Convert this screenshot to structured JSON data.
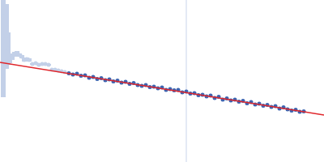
{
  "chart_data": {
    "type": "scatter",
    "tick_labels": false,
    "grid": false,
    "xlim": [
      0,
      400
    ],
    "ylim": [
      0,
      200
    ],
    "xticks": [],
    "yticks": [],
    "vline": 230,
    "series": [
      {
        "type": "scatter",
        "marker": "circle",
        "color": "#c3d0e8",
        "x": [
          4,
          8,
          10,
          12,
          15,
          18,
          21,
          24,
          27,
          30,
          33,
          36,
          40,
          44,
          48,
          52,
          56,
          60,
          64,
          68,
          72,
          76,
          80
        ],
        "values": [
          180,
          155,
          140,
          128,
          130,
          133,
          134,
          132,
          130,
          126,
          127,
          126,
          121,
          122,
          120,
          121,
          121,
          120,
          114,
          114,
          113,
          112,
          111
        ],
        "errors": [
          100,
          40,
          20,
          6,
          4,
          3,
          3,
          2,
          2,
          2,
          2,
          2,
          1,
          1,
          1,
          1,
          1,
          1,
          0,
          0,
          0,
          0,
          0
        ]
      },
      {
        "type": "scatter",
        "marker": "circle",
        "color": "#3d64b0",
        "x": [
          85,
          90,
          95,
          100,
          105,
          110,
          115,
          120,
          125,
          130,
          135,
          140,
          145,
          150,
          155,
          160,
          165,
          170,
          175,
          180,
          185,
          190,
          195,
          200,
          205,
          210,
          215,
          220,
          225,
          230,
          235,
          240,
          245,
          250,
          255,
          260,
          265,
          270,
          275,
          280,
          285,
          290,
          295,
          300,
          305,
          310,
          315,
          320,
          325,
          330,
          335,
          340,
          345,
          350,
          355,
          360,
          365,
          370,
          375
        ],
        "values": [
          109.5,
          108,
          109,
          106.5,
          107,
          104,
          105,
          102.5,
          103.5,
          101,
          102,
          99.5,
          100.5,
          98,
          99,
          96.5,
          97.5,
          95,
          94,
          95,
          92.5,
          93,
          91,
          92,
          89,
          90,
          88.5,
          89,
          86,
          87,
          84.5,
          85,
          82.5,
          83,
          81,
          82,
          79,
          80.5,
          77,
          78.5,
          76,
          77,
          74.5,
          75.5,
          72.5,
          74,
          71,
          72,
          69.5,
          70.5,
          68,
          69,
          66,
          67.5,
          65,
          63.5,
          64.5,
          62,
          62.5
        ]
      },
      {
        "type": "line",
        "line_style": "solid",
        "color": "#e0262b",
        "x": [
          0,
          400
        ],
        "values": [
          123,
          58
        ]
      }
    ]
  }
}
